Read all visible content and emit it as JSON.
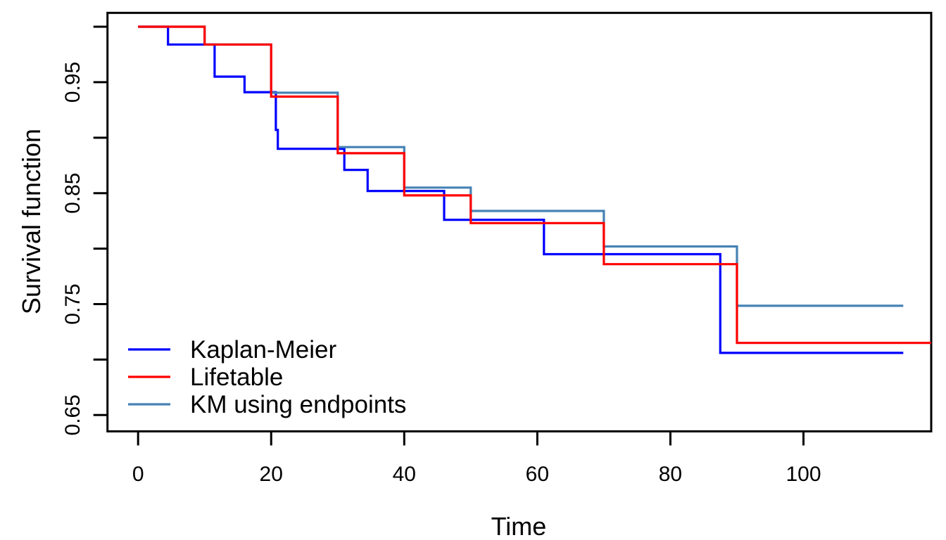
{
  "chart_data": {
    "type": "line",
    "variant": "step-function-survival-curves",
    "title": "",
    "xlabel": "Time",
    "ylabel": "Survival function",
    "x_tick_labels": [
      0,
      20,
      40,
      60,
      80,
      100
    ],
    "y_tick_labels": [
      0.95,
      0.85,
      0.75,
      0.65
    ],
    "y_minor_ticks": [
      1.0,
      0.9,
      0.8,
      0.7
    ],
    "xlim": [
      -4.6,
      119.2
    ],
    "ylim": [
      0.6353,
      1.0125
    ],
    "grid": false,
    "background_color": "#ffffff",
    "axis_color": "#000000",
    "legend_position": "bottom-left",
    "legend_entries": [
      "Kaplan-Meier",
      "Lifetable",
      "KM using endpoints"
    ],
    "series": [
      {
        "name": "Kaplan-Meier",
        "color": "#0000ff",
        "z": 1,
        "end_time": 115,
        "steps": [
          [
            0,
            1.0
          ],
          [
            4.5,
            0.984
          ],
          [
            11.5,
            0.955
          ],
          [
            16,
            0.941
          ],
          [
            20.7,
            0.907
          ],
          [
            21,
            0.89
          ],
          [
            31,
            0.871
          ],
          [
            34.5,
            0.852
          ],
          [
            46,
            0.826
          ],
          [
            61,
            0.795
          ],
          [
            87.5,
            0.706
          ]
        ]
      },
      {
        "name": "Lifetable",
        "color": "#ff0000",
        "z": 3,
        "end_time": 119.2,
        "steps": [
          [
            0,
            1.0
          ],
          [
            10,
            0.984
          ],
          [
            20,
            0.937
          ],
          [
            30,
            0.886
          ],
          [
            40,
            0.848
          ],
          [
            50,
            0.823
          ],
          [
            70,
            0.786
          ],
          [
            90,
            0.715
          ]
        ]
      },
      {
        "name": "KM using endpoints",
        "color": "#4682b4",
        "z": 2,
        "end_time": 115,
        "steps": [
          [
            0,
            1.0
          ],
          [
            10,
            0.984
          ],
          [
            20,
            0.9405
          ],
          [
            30,
            0.8915
          ],
          [
            40,
            0.855
          ],
          [
            50,
            0.834
          ],
          [
            70,
            0.802
          ],
          [
            90,
            0.7485
          ]
        ]
      }
    ]
  }
}
